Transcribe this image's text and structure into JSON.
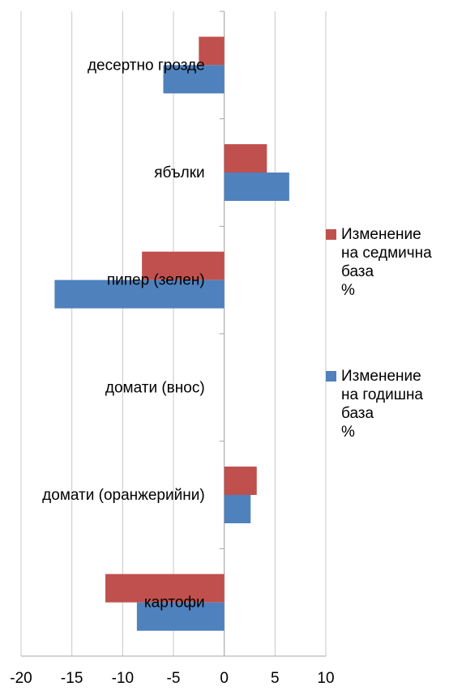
{
  "chart_data": {
    "type": "bar",
    "orientation": "horizontal",
    "categories": [
      "десертно грозде",
      "ябълки",
      "пипер (зелен)",
      "домати (внос)",
      "домати (оранжерийни)",
      "картофи"
    ],
    "series": [
      {
        "name": "Изменение на седмична база %",
        "color": "#C0504D",
        "values": [
          -2.5,
          4.2,
          -8.1,
          0,
          3.2,
          -11.7
        ]
      },
      {
        "name": "Изменение на годишна база %",
        "color": "#4F81BD",
        "values": [
          -6.0,
          6.4,
          -16.7,
          0,
          2.6,
          -8.6
        ]
      }
    ],
    "x_ticks": [
      "-20",
      "-15",
      "-10",
      "-5",
      "0",
      "5",
      "10"
    ],
    "xlim": [
      -20,
      10
    ],
    "grid": "vertical",
    "legend": "right",
    "title": "",
    "xlabel": "",
    "ylabel": ""
  },
  "legend": {
    "weekly_label": "Изменение\nна седмична\nбаза\n%",
    "yearly_label": "Изменение\nна годишна\nбаза\n%"
  }
}
